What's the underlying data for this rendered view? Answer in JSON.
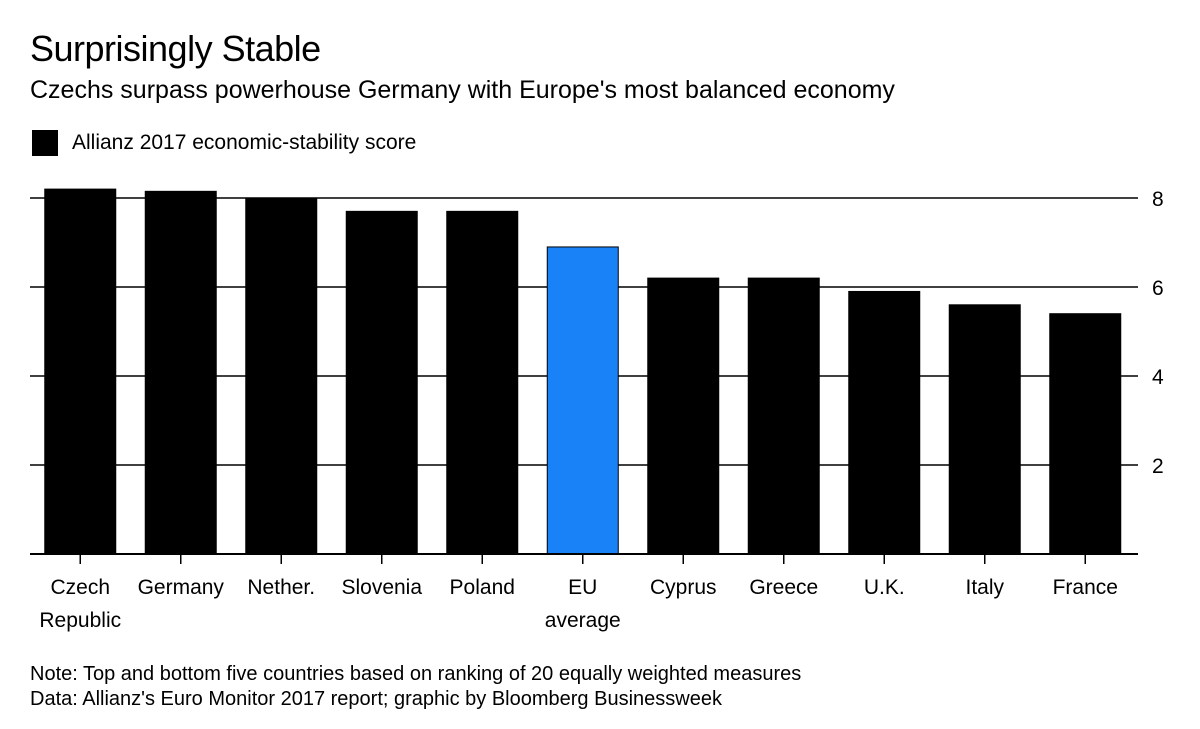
{
  "header": {
    "title": "Surprisingly Stable",
    "subtitle": "Czechs surpass powerhouse Germany with Europe's most balanced economy"
  },
  "legend": {
    "label": "Allianz 2017 economic-stability score",
    "color": "#000000"
  },
  "footer": {
    "note": "Note: Top and bottom five countries based on ranking of 20 equally weighted measures",
    "source": "Data: Allianz's Euro Monitor 2017 report; graphic by Bloomberg Businessweek"
  },
  "chart_data": {
    "type": "bar",
    "title": "Surprisingly Stable",
    "subtitle": "Czechs surpass powerhouse Germany with Europe's most balanced economy",
    "categories": [
      [
        "Czech",
        "Republic"
      ],
      [
        "Germany"
      ],
      [
        "Nether."
      ],
      [
        "Slovenia"
      ],
      [
        "Poland"
      ],
      [
        "EU",
        "average"
      ],
      [
        "Cyprus"
      ],
      [
        "Greece"
      ],
      [
        "U.K."
      ],
      [
        "Italy"
      ],
      [
        "France"
      ]
    ],
    "series": [
      {
        "name": "Allianz 2017 economic-stability score",
        "values": [
          8.2,
          8.15,
          8.0,
          7.7,
          7.7,
          6.9,
          6.2,
          6.2,
          5.9,
          5.6,
          5.4
        ]
      }
    ],
    "highlight_index": 5,
    "bar_color": "#000000",
    "highlight_color": "#1a82f7",
    "yticks": [
      2,
      4,
      6,
      8
    ],
    "ylim": [
      0,
      8.5
    ],
    "y_axis_position": "right",
    "grid": true,
    "legend_position": "top-left"
  }
}
